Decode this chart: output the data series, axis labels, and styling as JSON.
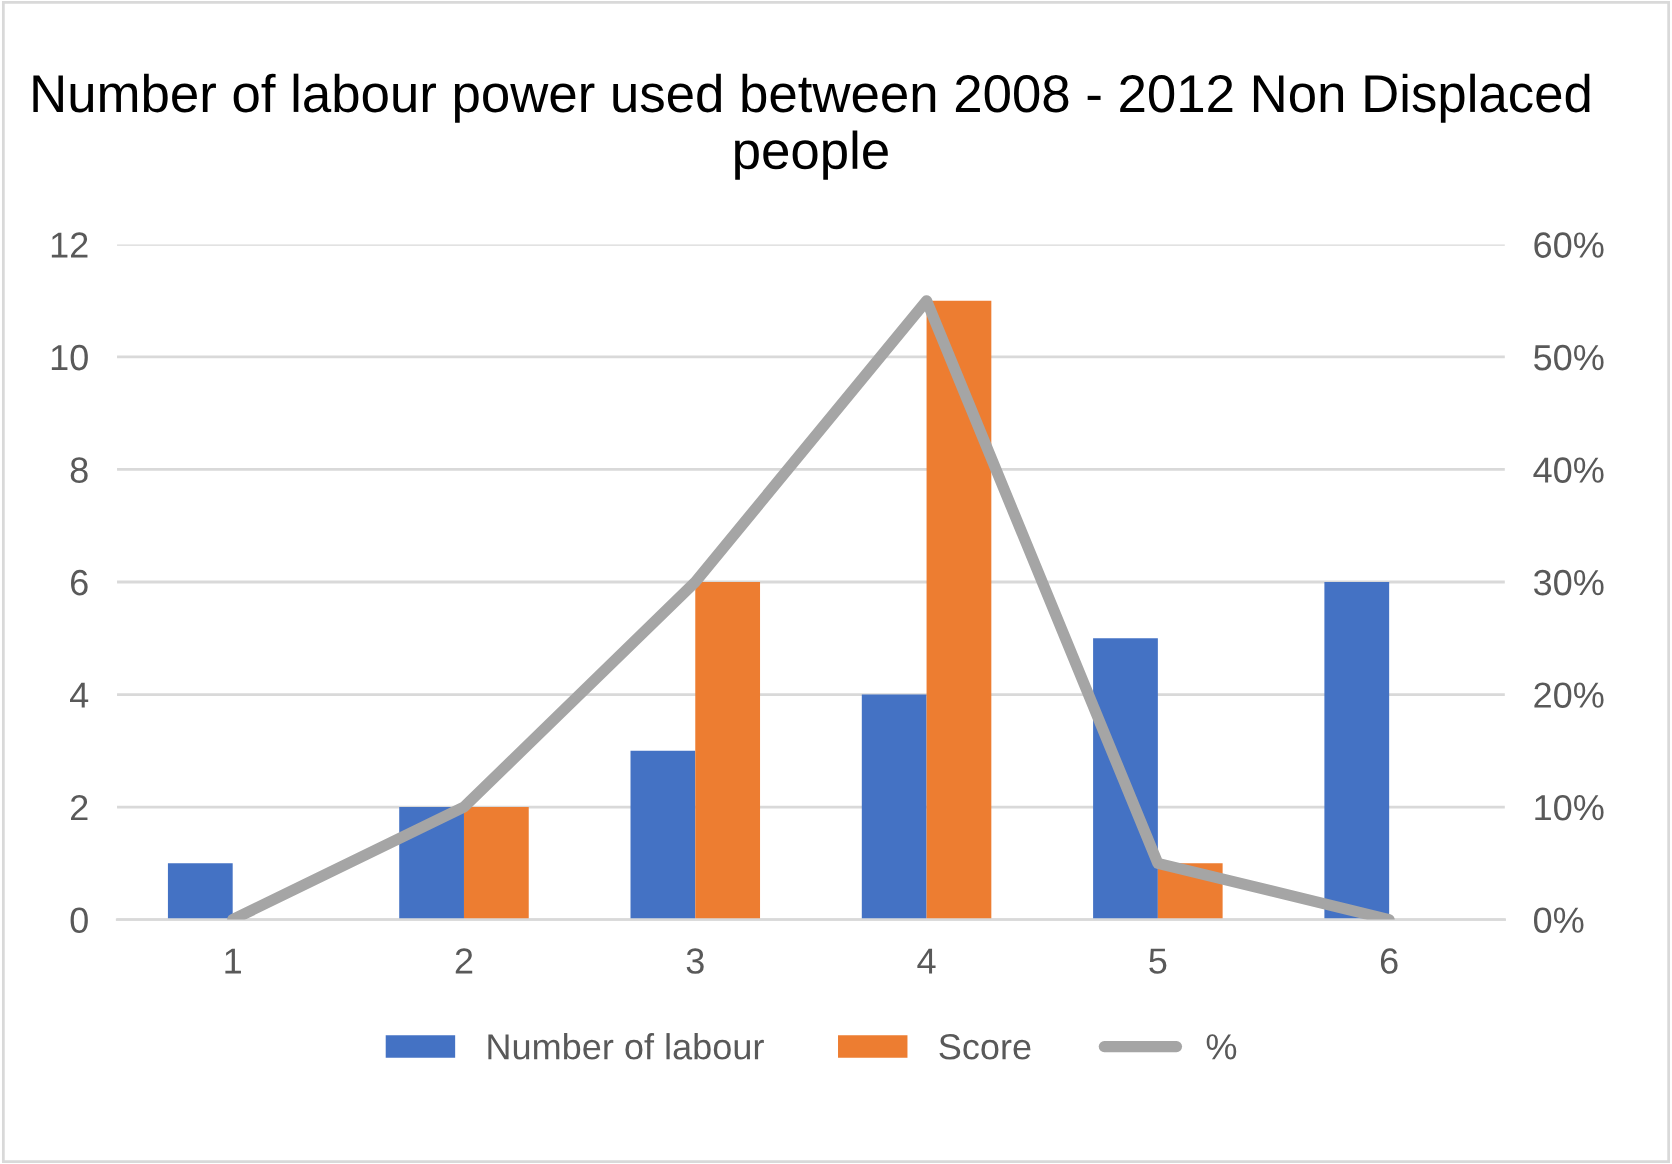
{
  "chart_data": {
    "type": "bar",
    "title": "Number of labour power used between 2008 - 2012 Non Displaced people",
    "categories": [
      "1",
      "2",
      "3",
      "4",
      "5",
      "6"
    ],
    "series": [
      {
        "name": "Number of labour",
        "color": "#4472c4",
        "values": [
          1,
          2,
          3,
          4,
          5,
          6
        ]
      },
      {
        "name": "Score",
        "color": "#ed7d31",
        "values": [
          0,
          2,
          6,
          11,
          1,
          0
        ]
      },
      {
        "name": "%",
        "type": "line",
        "axis": "y2",
        "color": "#a5a5a5",
        "values": [
          0,
          10,
          30,
          55,
          5,
          0
        ]
      }
    ],
    "ylim": [
      0,
      12
    ],
    "yticks": [
      0,
      2,
      4,
      6,
      8,
      10,
      12
    ],
    "y2lim": [
      0,
      60
    ],
    "y2ticks": [
      {
        "value": 0,
        "label": "0%"
      },
      {
        "value": 10,
        "label": "10%"
      },
      {
        "value": 20,
        "label": "20%"
      },
      {
        "value": 30,
        "label": "30%"
      },
      {
        "value": 40,
        "label": "40%"
      },
      {
        "value": 50,
        "label": "50%"
      },
      {
        "value": 60,
        "label": "60%"
      }
    ],
    "grid": "y",
    "legend": "bottom",
    "marker": "none",
    "line_style": "solid"
  }
}
